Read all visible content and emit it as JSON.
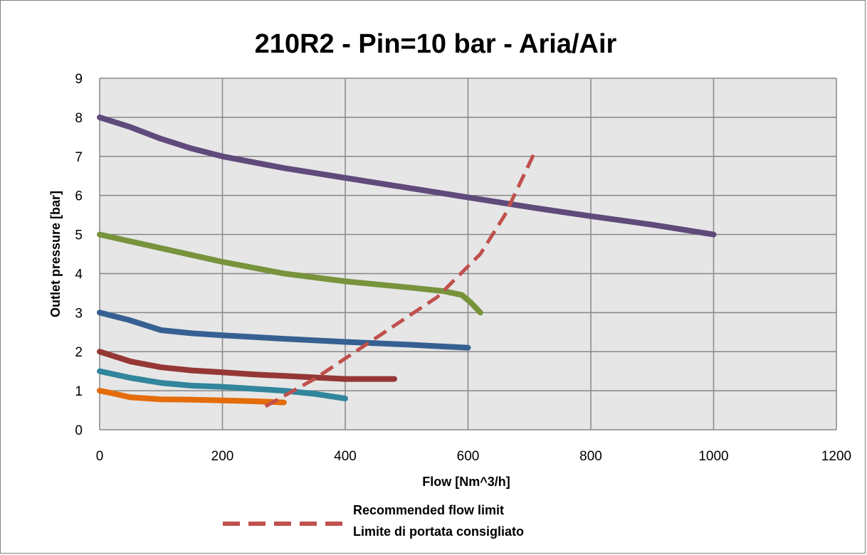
{
  "chart_data": {
    "type": "line",
    "title": "210R2 - Pin=10 bar  - Aria/Air",
    "xlabel": "Flow [Nm^3/h]",
    "ylabel": "Outlet pressure [bar]",
    "xlim": [
      0,
      1200
    ],
    "ylim": [
      0,
      9
    ],
    "x_ticks": [
      0,
      200,
      400,
      600,
      800,
      1000,
      1200
    ],
    "y_ticks": [
      0,
      1,
      2,
      3,
      4,
      5,
      6,
      7,
      8,
      9
    ],
    "grid": true,
    "plot_background": "#e6e6e6",
    "legend_position": "bottom",
    "series": [
      {
        "color": "#604a7b",
        "x": [
          0,
          50,
          100,
          150,
          200,
          300,
          400,
          500,
          600,
          700,
          800,
          900,
          1000
        ],
        "y": [
          8.0,
          7.75,
          7.45,
          7.2,
          7.0,
          6.7,
          6.45,
          6.2,
          5.95,
          5.7,
          5.47,
          5.25,
          5.0
        ]
      },
      {
        "color": "#77933c",
        "x": [
          0,
          100,
          200,
          300,
          400,
          500,
          560,
          590,
          605,
          620
        ],
        "y": [
          5.0,
          4.65,
          4.3,
          4.0,
          3.8,
          3.65,
          3.55,
          3.45,
          3.25,
          3.0
        ]
      },
      {
        "color": "#376092",
        "x": [
          0,
          50,
          100,
          150,
          200,
          300,
          400,
          500,
          600
        ],
        "y": [
          3.0,
          2.8,
          2.55,
          2.47,
          2.42,
          2.33,
          2.25,
          2.18,
          2.1
        ]
      },
      {
        "color": "#953735",
        "x": [
          0,
          50,
          100,
          150,
          200,
          250,
          300,
          400,
          480
        ],
        "y": [
          2.0,
          1.75,
          1.6,
          1.52,
          1.47,
          1.42,
          1.38,
          1.3,
          1.3
        ]
      },
      {
        "color": "#31859c",
        "x": [
          0,
          50,
          100,
          150,
          200,
          250,
          300,
          350,
          400
        ],
        "y": [
          1.5,
          1.33,
          1.2,
          1.13,
          1.1,
          1.05,
          1.0,
          0.92,
          0.8
        ]
      },
      {
        "color": "#e46c0a",
        "x": [
          0,
          25,
          50,
          100,
          150,
          200,
          250,
          300
        ],
        "y": [
          1.0,
          0.92,
          0.83,
          0.78,
          0.77,
          0.75,
          0.73,
          0.7
        ]
      }
    ],
    "limit_line": {
      "name_line1": "Recommended flow limit",
      "name_line2": "Limite di portata consigliato",
      "color": "#c0504d",
      "dashed": true,
      "x": [
        270,
        350,
        450,
        550,
        620,
        660,
        710
      ],
      "y": [
        0.6,
        1.3,
        2.35,
        3.4,
        4.5,
        5.5,
        7.15
      ]
    }
  }
}
